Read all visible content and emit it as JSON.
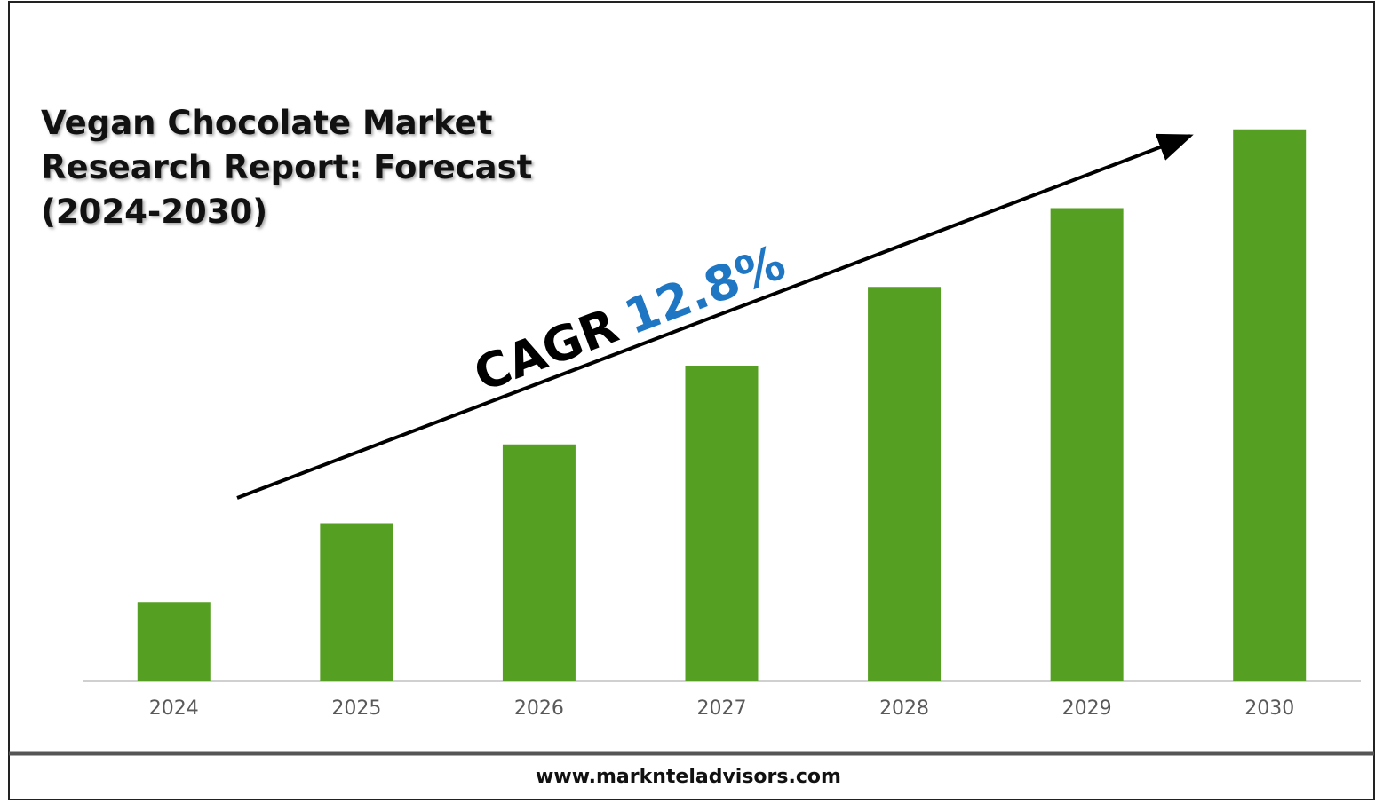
{
  "chart_data": {
    "type": "bar",
    "title": "Vegan Chocolate Market Research Report: Forecast (2024-2030)",
    "categories": [
      "2024",
      "2025",
      "2026",
      "2027",
      "2028",
      "2029",
      "2030"
    ],
    "values": [
      1,
      2,
      3,
      4,
      5,
      6,
      7
    ],
    "color": "#55a022",
    "ylim": [
      0,
      8
    ],
    "annotation_label": "CAGR",
    "annotation_value": "12.8%",
    "annotation_value_color": "#1f77c4",
    "footer": "www.marknteladvisors.com"
  }
}
